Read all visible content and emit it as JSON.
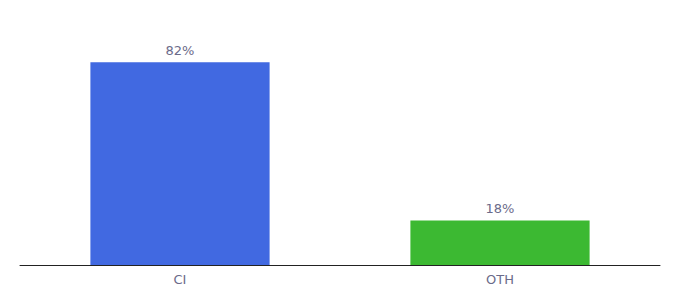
{
  "chart_data": {
    "type": "bar",
    "categories": [
      "CI",
      "OTH"
    ],
    "values": [
      82,
      18
    ],
    "value_labels": [
      "82%",
      "18%"
    ],
    "colors": [
      "#4169e1",
      "#3cb932"
    ],
    "ylim": [
      0,
      95
    ],
    "data_labels": true,
    "tick_labels": "x",
    "grid": false
  }
}
